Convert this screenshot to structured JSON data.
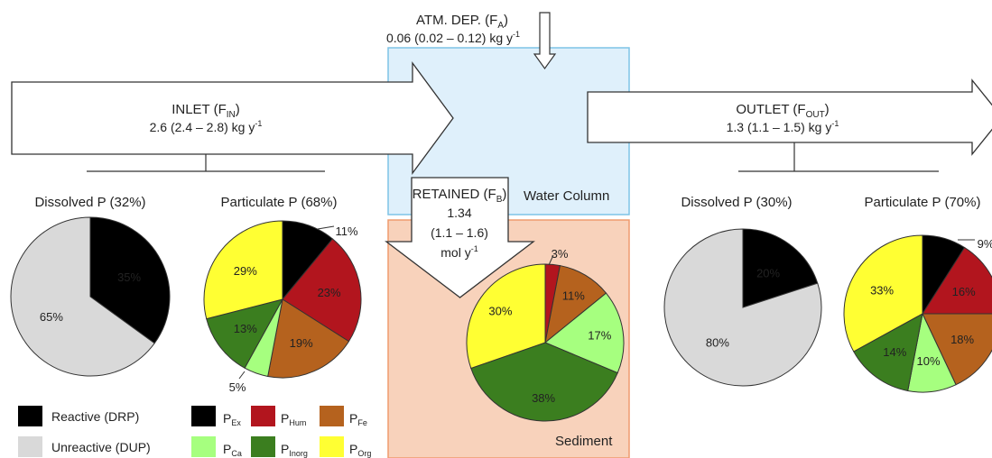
{
  "colors": {
    "water": "#dff0fb",
    "water_border": "#7ec4e6",
    "sediment": "#f8d2bb",
    "sediment_border": "#ef9b6e",
    "drp": "#000000",
    "dup": "#d9d9d9",
    "ex": "#000000",
    "hum": "#b2151e",
    "fe": "#b5621e",
    "ca": "#a6ff7f",
    "inorg": "#3b7e1f",
    "org": "#ffff33"
  },
  "atm": {
    "title_main": "ATM. DEP. (F",
    "title_sub": "A",
    "title_end": ")",
    "value": "0.06 (0.02 – 0.12) kg y",
    "value_sup": "-1"
  },
  "inlet": {
    "title_main": "INLET (F",
    "title_sub": "IN",
    "title_end": ")",
    "value": "2.6 (2.4 – 2.8) kg y",
    "value_sup": "-1"
  },
  "outlet": {
    "title_main": "OUTLET (F",
    "title_sub": "OUT",
    "title_end": ")",
    "value": "1.3 (1.1 – 1.5) kg y",
    "value_sup": "-1"
  },
  "retained": {
    "title_main": "RETAINED (F",
    "title_sub": "B",
    "title_end": ")",
    "line1": "1.34",
    "line2": "(1.1 – 1.6)",
    "line3": "mol y",
    "line3_sup": "-1"
  },
  "labels": {
    "water_column": "Water Column",
    "sediment": "Sediment",
    "inlet_dissolved": "Dissolved P (32%)",
    "inlet_particulate": "Particulate P (68%)",
    "outlet_dissolved": "Dissolved P (30%)",
    "outlet_particulate": "Particulate P (70%)"
  },
  "legend": {
    "drp": "Reactive (DRP)",
    "dup": "Unreactive (DUP)",
    "p": "P",
    "ex": "Ex",
    "hum": "Hum",
    "fe": "Fe",
    "ca": "Ca",
    "inorg": "Inorg",
    "org": "Org"
  },
  "chart_data": [
    {
      "type": "pie",
      "name": "inlet-dissolved",
      "categories": [
        "Reactive (DRP)",
        "Unreactive (DUP)"
      ],
      "values": [
        35,
        65
      ],
      "labels": [
        "35%",
        "65%"
      ]
    },
    {
      "type": "pie",
      "name": "inlet-particulate",
      "categories": [
        "Ex",
        "Hum",
        "Fe",
        "Ca",
        "Inorg",
        "Org"
      ],
      "values": [
        11,
        23,
        19,
        5,
        13,
        29
      ],
      "labels": [
        "11%",
        "23%",
        "19%",
        "5%",
        "13%",
        "29%"
      ]
    },
    {
      "type": "pie",
      "name": "sediment",
      "categories": [
        "Hum",
        "Fe",
        "Ca",
        "Inorg",
        "Org"
      ],
      "values": [
        3,
        11,
        17,
        38,
        30
      ],
      "labels": [
        "3%",
        "11%",
        "17%",
        "38%",
        "30%"
      ]
    },
    {
      "type": "pie",
      "name": "outlet-dissolved",
      "categories": [
        "Reactive (DRP)",
        "Unreactive (DUP)"
      ],
      "values": [
        20,
        80
      ],
      "labels": [
        "20%",
        "80%"
      ]
    },
    {
      "type": "pie",
      "name": "outlet-particulate",
      "categories": [
        "Ex",
        "Hum",
        "Fe",
        "Ca",
        "Inorg",
        "Org"
      ],
      "values": [
        9,
        16,
        18,
        10,
        14,
        33
      ],
      "labels": [
        "9%",
        "16%",
        "18%",
        "10%",
        "14%",
        "33%"
      ]
    }
  ]
}
